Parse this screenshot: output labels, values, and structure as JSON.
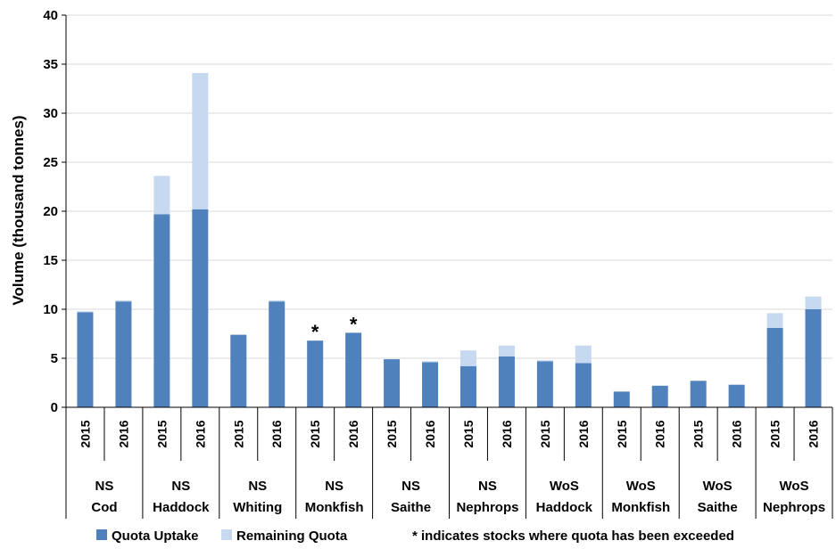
{
  "chart_data": {
    "type": "bar",
    "stacked": true,
    "ylabel": "Volume (thousand tonnes)",
    "ylim": [
      0,
      40
    ],
    "yticks": [
      0,
      5,
      10,
      15,
      20,
      25,
      30,
      35,
      40
    ],
    "grid": true,
    "legend_position": "bottom",
    "groups": [
      {
        "label": [
          "NS",
          "Cod"
        ],
        "years": [
          "2015",
          "2016"
        ],
        "uptake": [
          9.7,
          10.8
        ],
        "remaining": [
          0.1,
          0.1
        ],
        "exceeded": [
          false,
          false
        ]
      },
      {
        "label": [
          "NS",
          "Haddock"
        ],
        "years": [
          "2015",
          "2016"
        ],
        "uptake": [
          19.7,
          20.2
        ],
        "remaining": [
          3.9,
          13.9
        ],
        "exceeded": [
          false,
          false
        ]
      },
      {
        "label": [
          "NS",
          "Whiting"
        ],
        "years": [
          "2015",
          "2016"
        ],
        "uptake": [
          7.4,
          10.8
        ],
        "remaining": [
          0.0,
          0.1
        ],
        "exceeded": [
          false,
          false
        ]
      },
      {
        "label": [
          "NS",
          "Monkfish"
        ],
        "years": [
          "2015",
          "2016"
        ],
        "uptake": [
          6.8,
          7.6
        ],
        "remaining": [
          0,
          0
        ],
        "exceeded": [
          true,
          true
        ]
      },
      {
        "label": [
          "NS",
          "Saithe"
        ],
        "years": [
          "2015",
          "2016"
        ],
        "uptake": [
          4.9,
          4.6
        ],
        "remaining": [
          0.0,
          0.1
        ],
        "exceeded": [
          false,
          false
        ]
      },
      {
        "label": [
          "NS",
          "Nephrops"
        ],
        "years": [
          "2015",
          "2016"
        ],
        "uptake": [
          4.2,
          5.2
        ],
        "remaining": [
          1.6,
          1.1
        ],
        "exceeded": [
          false,
          false
        ]
      },
      {
        "label": [
          "WoS",
          "Haddock"
        ],
        "years": [
          "2015",
          "2016"
        ],
        "uptake": [
          4.7,
          4.5
        ],
        "remaining": [
          0.1,
          1.8
        ],
        "exceeded": [
          false,
          false
        ]
      },
      {
        "label": [
          "WoS",
          "Monkfish"
        ],
        "years": [
          "2015",
          "2016"
        ],
        "uptake": [
          1.6,
          2.2
        ],
        "remaining": [
          0.0,
          0.0
        ],
        "exceeded": [
          false,
          false
        ]
      },
      {
        "label": [
          "WoS",
          "Saithe"
        ],
        "years": [
          "2015",
          "2016"
        ],
        "uptake": [
          2.7,
          2.3
        ],
        "remaining": [
          0.0,
          0.0
        ],
        "exceeded": [
          false,
          false
        ]
      },
      {
        "label": [
          "WoS",
          "Nephrops"
        ],
        "years": [
          "2015",
          "2016"
        ],
        "uptake": [
          8.1,
          10.0
        ],
        "remaining": [
          1.5,
          1.3
        ],
        "exceeded": [
          false,
          false
        ]
      }
    ],
    "series": [
      {
        "name": "Quota Uptake",
        "color": "#4F81BD"
      },
      {
        "name": "Remaining Quota",
        "color": "#C6D9F1"
      }
    ],
    "exceeded_marker": "*",
    "legend_note": "*  indicates stocks where quota has been exceeded"
  }
}
